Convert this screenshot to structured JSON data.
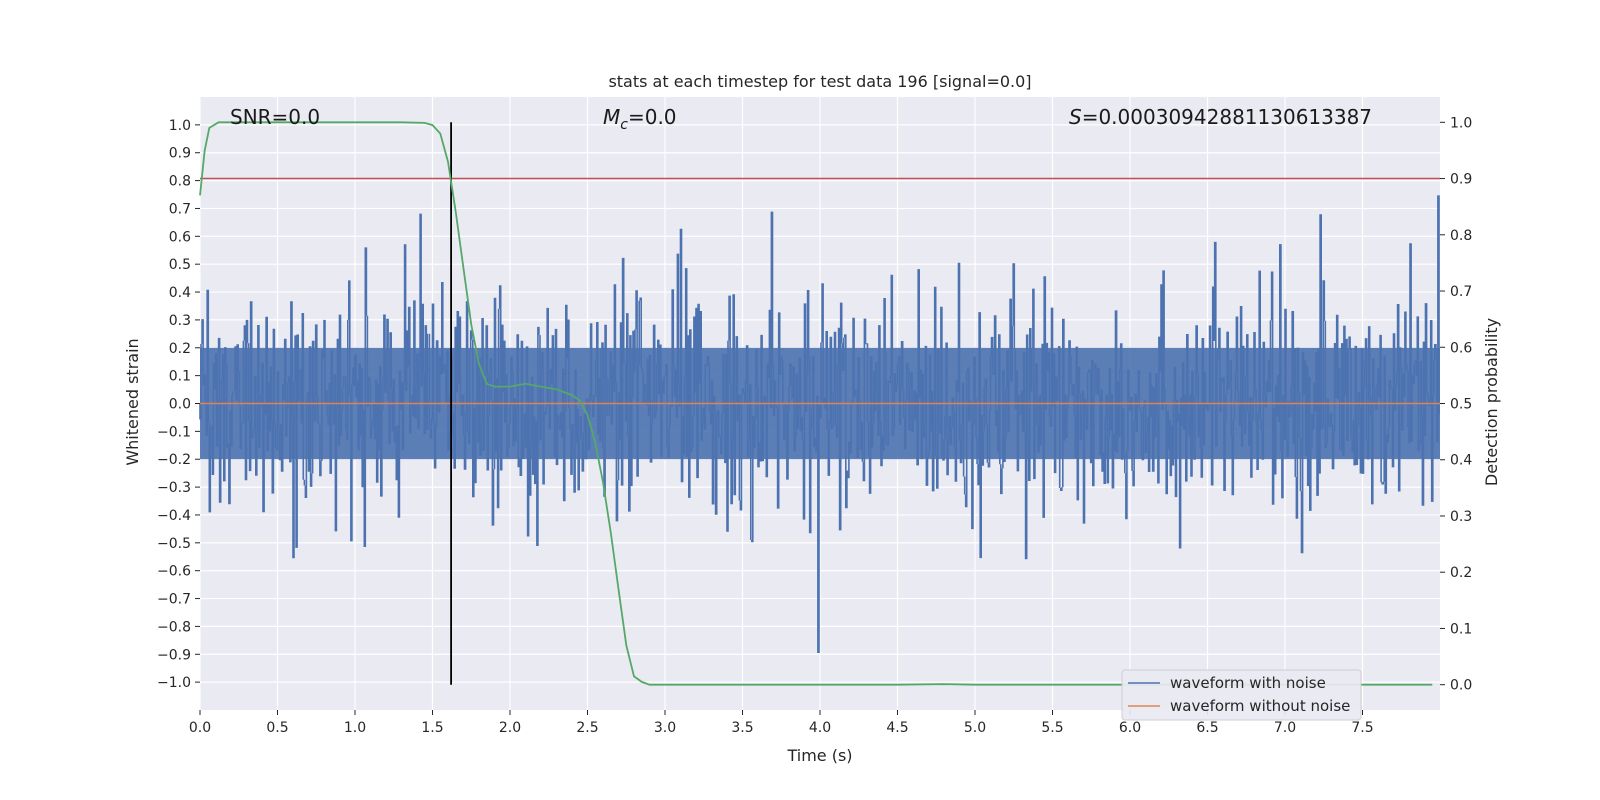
{
  "chart_data": {
    "type": "line",
    "title": "stats at each timestep for test data 196 [signal=0.0]",
    "xlabel": "Time (s)",
    "ylabel_left": "Whitened strain",
    "ylabel_right": "Detection probability",
    "xlim": [
      0.0,
      8.0
    ],
    "ylim_left": [
      -1.1,
      1.1
    ],
    "ylim_right": [
      -0.045,
      1.045
    ],
    "x_ticks": [
      "0.0",
      "0.5",
      "1.0",
      "1.5",
      "2.0",
      "2.5",
      "3.0",
      "3.5",
      "4.0",
      "4.5",
      "5.0",
      "5.5",
      "6.0",
      "6.5",
      "7.0",
      "7.5"
    ],
    "y_left_ticks": [
      "1.0",
      "0.9",
      "0.8",
      "0.7",
      "0.6",
      "0.5",
      "0.4",
      "0.3",
      "0.2",
      "0.1",
      "0.0",
      "−0.1",
      "−0.2",
      "−0.3",
      "−0.4",
      "−0.5",
      "−0.6",
      "−0.7",
      "−0.8",
      "−0.9",
      "−1.0"
    ],
    "y_right_ticks": [
      "1.0",
      "0.9",
      "0.8",
      "0.7",
      "0.6",
      "0.5",
      "0.4",
      "0.3",
      "0.2",
      "0.1",
      "0.0"
    ],
    "grid": true,
    "annotations": {
      "snr": "SNR=0.0",
      "mc_symbol": "M",
      "mc_sub": "c",
      "mc_value": "=0.0",
      "s_symbol": "S",
      "s_value": "=0.00030942881130613387"
    },
    "threshold_right": 0.9,
    "vline_x": 1.62,
    "series": [
      {
        "name": "waveform with noise",
        "axis": "left",
        "color": "#4c72b0",
        "kind": "noise",
        "duration_s": 8.0,
        "approx_sample_count": 1200,
        "typical_amplitude": 0.35,
        "peak_amplitude": 1.0
      },
      {
        "name": "waveform without noise",
        "axis": "left",
        "color": "#dd8452",
        "kind": "constant",
        "value": 0.0
      },
      {
        "name": "detection probability",
        "axis": "right",
        "color": "#55a868",
        "x": [
          0.0,
          0.03,
          0.06,
          0.12,
          0.2,
          0.5,
          1.0,
          1.3,
          1.45,
          1.5,
          1.55,
          1.6,
          1.65,
          1.7,
          1.75,
          1.8,
          1.85,
          1.9,
          2.0,
          2.1,
          2.2,
          2.3,
          2.4,
          2.45,
          2.5,
          2.55,
          2.6,
          2.65,
          2.7,
          2.75,
          2.8,
          2.85,
          2.9,
          3.0,
          3.5,
          4.0,
          4.5,
          4.8,
          5.0,
          5.5,
          6.0,
          6.5,
          7.0,
          7.5,
          7.95
        ],
        "values": [
          0.87,
          0.95,
          0.99,
          1.0,
          1.0,
          1.0,
          1.0,
          1.0,
          0.999,
          0.995,
          0.98,
          0.93,
          0.84,
          0.74,
          0.64,
          0.57,
          0.535,
          0.53,
          0.53,
          0.535,
          0.53,
          0.525,
          0.515,
          0.505,
          0.48,
          0.43,
          0.36,
          0.27,
          0.17,
          0.07,
          0.015,
          0.005,
          0.0,
          0.0,
          0.0,
          0.0,
          0.0,
          0.001,
          0.0,
          0.0,
          0.0,
          0.0,
          0.0,
          0.0,
          0.0
        ]
      }
    ],
    "legend": {
      "position": "lower-right",
      "entries": [
        {
          "label": "waveform with noise",
          "color": "#4c72b0"
        },
        {
          "label": "waveform without noise",
          "color": "#dd8452"
        }
      ]
    },
    "colors": {
      "background": "#eaeaf2",
      "grid": "#ffffff",
      "threshold": "#c44e52",
      "vline": "#000000",
      "text": "#262626"
    }
  }
}
